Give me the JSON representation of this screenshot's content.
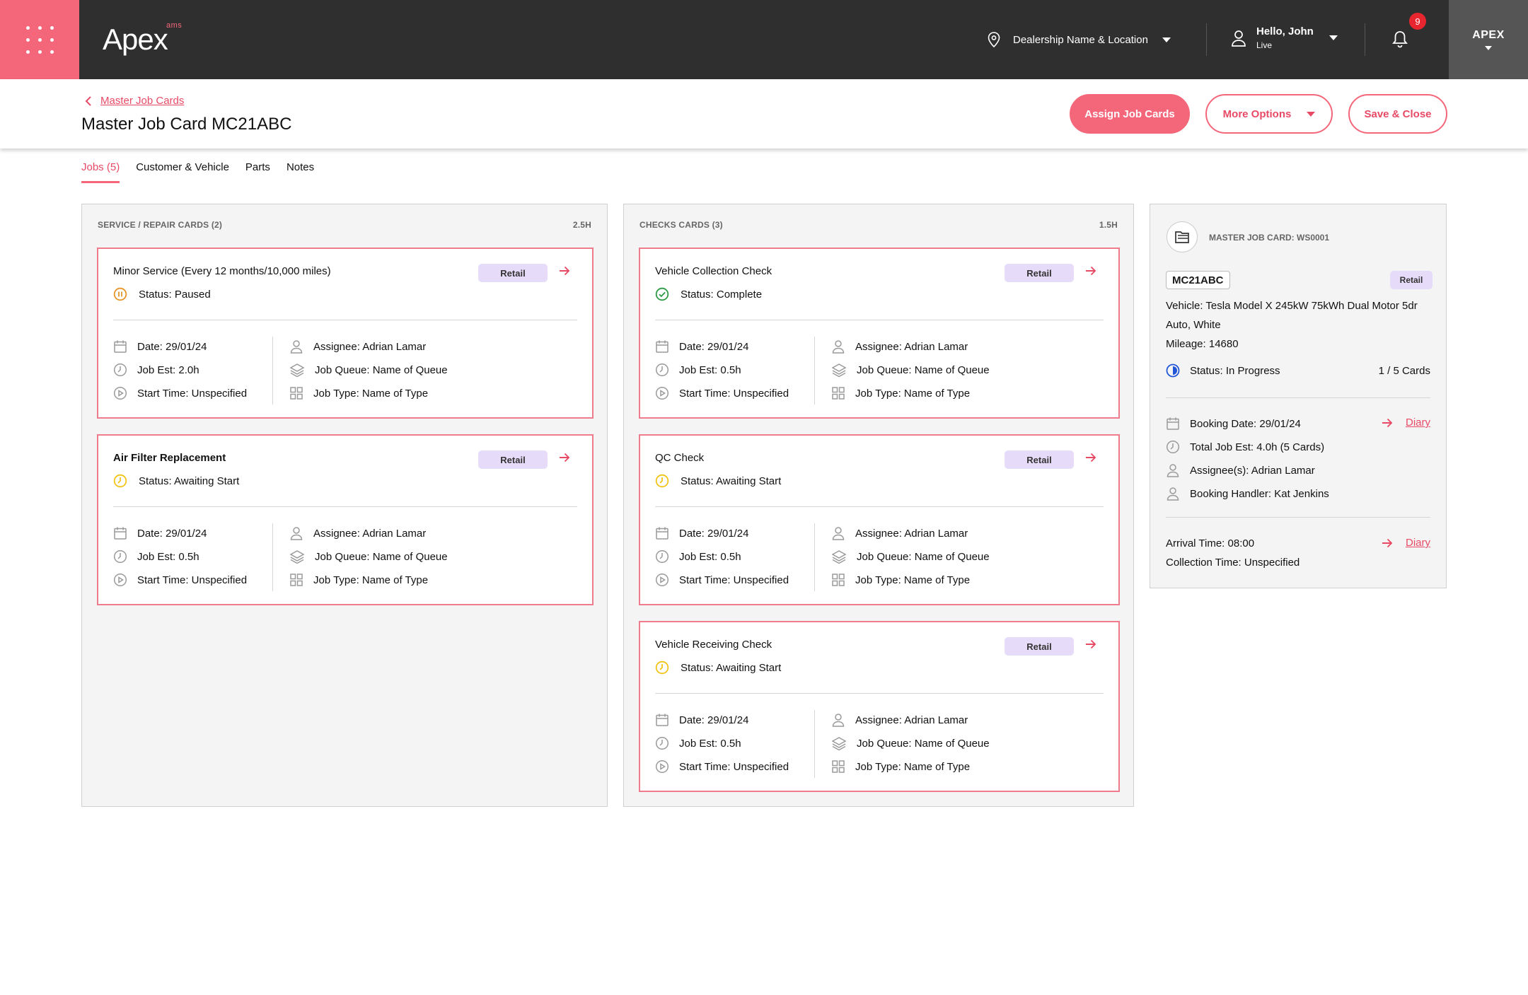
{
  "app": {
    "logo_word": "Apex",
    "logo_sup": "ams",
    "dealership": "Dealership Name & Location",
    "user_greeting": "Hello, John",
    "user_status": "Live",
    "notification_count": "9",
    "brand_button": "APEX"
  },
  "header": {
    "breadcrumb": "Master Job Cards",
    "title": "Master Job Card MC21ABC",
    "assign_label": "Assign Job Cards",
    "more_label": "More Options",
    "save_label": "Save & Close"
  },
  "tabs": [
    {
      "label": "Jobs (5)",
      "active": true
    },
    {
      "label": "Customer & Vehicle",
      "active": false
    },
    {
      "label": "Parts",
      "active": false
    },
    {
      "label": "Notes",
      "active": false
    }
  ],
  "columns": [
    {
      "title": "SERVICE / REPAIR CARDS (2)",
      "hours": "2.5H",
      "cards": [
        {
          "title": "Minor Service (Every 12 months/10,000 miles)",
          "bold": false,
          "tag": "Retail",
          "status": "Status: Paused",
          "status_icon": "pause-icon",
          "date": "Date: 29/01/24",
          "est": "Job Est: 2.0h",
          "start": "Start Time: Unspecified",
          "assignee": "Assignee: Adrian Lamar",
          "queue": "Job Queue: Name of Queue",
          "type": "Job Type: Name of Type"
        },
        {
          "title": "Air Filter Replacement",
          "bold": true,
          "tag": "Retail",
          "status": "Status: Awaiting Start",
          "status_icon": "clock-icon",
          "date": "Date: 29/01/24",
          "est": "Job Est: 0.5h",
          "start": "Start Time: Unspecified",
          "assignee": "Assignee: Adrian Lamar",
          "queue": "Job Queue: Name of Queue",
          "type": "Job Type: Name of Type"
        }
      ]
    },
    {
      "title": "CHECKS CARDS (3)",
      "hours": "1.5H",
      "cards": [
        {
          "title": "Vehicle Collection Check",
          "bold": false,
          "tag": "Retail",
          "status": "Status: Complete",
          "status_icon": "check-icon",
          "date": "Date: 29/01/24",
          "est": "Job Est: 0.5h",
          "start": "Start Time: Unspecified",
          "assignee": "Assignee: Adrian Lamar",
          "queue": "Job Queue: Name of Queue",
          "type": "Job Type: Name of Type"
        },
        {
          "title": "QC Check",
          "bold": false,
          "tag": "Retail",
          "status": "Status: Awaiting Start",
          "status_icon": "clock-icon",
          "date": "Date: 29/01/24",
          "est": "Job Est: 0.5h",
          "start": "Start Time: Unspecified",
          "assignee": "Assignee: Adrian Lamar",
          "queue": "Job Queue: Name of Queue",
          "type": "Job Type: Name of Type"
        },
        {
          "title": "Vehicle Receiving Check",
          "bold": false,
          "tag": "Retail",
          "status": "Status: Awaiting Start",
          "status_icon": "clock-icon",
          "date": "Date: 29/01/24",
          "est": "Job Est: 0.5h",
          "start": "Start Time: Unspecified",
          "assignee": "Assignee: Adrian Lamar",
          "queue": "Job Queue: Name of Queue",
          "type": "Job Type: Name of Type"
        }
      ]
    }
  ],
  "panel": {
    "label": "MASTER JOB CARD: WS0001",
    "reg": "MC21ABC",
    "tag": "Retail",
    "vehicle_line1": "Vehicle: Tesla Model X 245kW 75kWh Dual Motor 5dr",
    "vehicle_line2": "Auto, White",
    "mileage": "Mileage: 14680",
    "status": "Status: In Progress",
    "cards_count": "1 / 5 Cards",
    "booking_date": "Booking Date: 29/01/24",
    "total_est": "Total Job Est: 4.0h (5 Cards)",
    "assignees": "Assignee(s): Adrian Lamar",
    "handler": "Booking Handler: Kat Jenkins",
    "diary_label": "Diary",
    "arrival": "Arrival Time: 08:00",
    "collection": "Collection Time: Unspecified"
  },
  "colors": {
    "accent": "#f4677a",
    "topbar": "#2f2f2f",
    "tag_bg": "#e6dcfa",
    "paused": "#e8952a",
    "awaiting": "#f2c418",
    "complete": "#2e9b46",
    "in_progress": "#2156d6"
  }
}
